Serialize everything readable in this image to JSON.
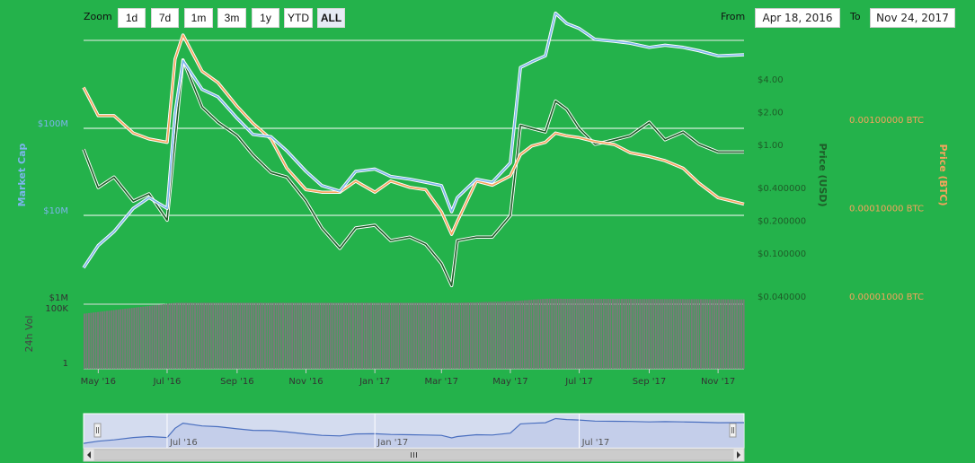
{
  "toolbar": {
    "zoom_label": "Zoom",
    "zoom_buttons": [
      "1d",
      "7d",
      "1m",
      "3m",
      "1y",
      "YTD",
      "ALL"
    ],
    "active_zoom": "ALL",
    "from_label": "From",
    "from_value": "Apr 18, 2016",
    "to_label": "To",
    "to_value": "Nov 24, 2017"
  },
  "colors": {
    "background": "#24b24b",
    "market_cap": "#7cb5ec",
    "price_usd": "#1e5c28",
    "price_btc": "#f7a35c",
    "volume": "#7a7a7a",
    "navigator": "#d4dcef"
  },
  "chart_data": {
    "type": "line",
    "x_range": [
      "2016-04-18",
      "2017-11-24"
    ],
    "x_ticks": [
      "May '16",
      "Jul '16",
      "Sep '16",
      "Nov '16",
      "Jan '17",
      "Mar '17",
      "May '17",
      "Jul '17",
      "Sep '17",
      "Nov '17"
    ],
    "y_axes": [
      {
        "id": "market_cap",
        "title": "Market Cap",
        "scale": "log",
        "ticks": [
          "$100M",
          "$10M"
        ],
        "tick_values": [
          100000000,
          10000000
        ]
      },
      {
        "id": "price_usd",
        "title": "Price (USD)",
        "scale": "log",
        "ticks": [
          "$4.00",
          "$2.00",
          "$1.00",
          "$0.400000",
          "$0.200000",
          "$0.100000",
          "$0.040000"
        ],
        "tick_values": [
          4,
          2,
          1,
          0.4,
          0.2,
          0.1,
          0.04
        ]
      },
      {
        "id": "price_btc",
        "title": "Price (BTC)",
        "scale": "log",
        "ticks": [
          "0.00100000 BTC",
          "0.00010000 BTC",
          "0.00001000 BTC"
        ],
        "tick_values": [
          0.001,
          0.0001,
          1e-05
        ]
      },
      {
        "id": "volume",
        "title": "24h Vol",
        "scale": "log",
        "ticks": [
          "$1M",
          "100K",
          "1"
        ],
        "tick_values": [
          1000000,
          100000,
          1
        ]
      }
    ],
    "series": [
      {
        "name": "Market Cap",
        "axis": "market_cap",
        "x": [
          "2016-04-18",
          "2016-05-01",
          "2016-05-15",
          "2016-06-01",
          "2016-06-15",
          "2016-07-01",
          "2016-07-08",
          "2016-07-15",
          "2016-08-01",
          "2016-08-15",
          "2016-09-01",
          "2016-09-15",
          "2016-10-01",
          "2016-10-15",
          "2016-11-01",
          "2016-11-15",
          "2016-12-01",
          "2016-12-15",
          "2017-01-01",
          "2017-01-15",
          "2017-02-01",
          "2017-02-15",
          "2017-03-01",
          "2017-03-10",
          "2017-03-15",
          "2017-04-01",
          "2017-04-15",
          "2017-05-01",
          "2017-05-10",
          "2017-05-20",
          "2017-06-01",
          "2017-06-10",
          "2017-06-20",
          "2017-07-01",
          "2017-07-15",
          "2017-08-01",
          "2017-08-15",
          "2017-09-01",
          "2017-09-15",
          "2017-10-01",
          "2017-10-15",
          "2017-11-01",
          "2017-11-24"
        ],
        "values": [
          2500000,
          4500000,
          6500000,
          12000000,
          16000000,
          12000000,
          150000000,
          600000000,
          280000000,
          230000000,
          130000000,
          85000000,
          80000000,
          55000000,
          32000000,
          22000000,
          19000000,
          32000000,
          34000000,
          28000000,
          26000000,
          24000000,
          22000000,
          11000000,
          16000000,
          26000000,
          24000000,
          40000000,
          500000000,
          580000000,
          680000000,
          2100000000,
          1600000000,
          1400000000,
          1050000000,
          1000000000,
          950000000,
          850000000,
          900000000,
          850000000,
          780000000,
          680000000,
          700000000
        ]
      },
      {
        "name": "Price (USD)",
        "axis": "price_usd",
        "x": [
          "2016-04-18",
          "2016-05-01",
          "2016-05-15",
          "2016-06-01",
          "2016-06-15",
          "2016-07-01",
          "2016-07-08",
          "2016-07-15",
          "2016-08-01",
          "2016-08-15",
          "2016-09-01",
          "2016-09-15",
          "2016-10-01",
          "2016-10-15",
          "2016-11-01",
          "2016-11-15",
          "2016-12-01",
          "2016-12-15",
          "2017-01-01",
          "2017-01-15",
          "2017-02-01",
          "2017-02-15",
          "2017-03-01",
          "2017-03-10",
          "2017-03-15",
          "2017-04-01",
          "2017-04-15",
          "2017-05-01",
          "2017-05-10",
          "2017-05-20",
          "2017-06-01",
          "2017-06-10",
          "2017-06-20",
          "2017-07-01",
          "2017-07-15",
          "2017-08-01",
          "2017-08-15",
          "2017-09-01",
          "2017-09-15",
          "2017-10-01",
          "2017-10-15",
          "2017-11-01",
          "2017-11-24"
        ],
        "values": [
          0.9,
          0.4,
          0.5,
          0.3,
          0.35,
          0.2,
          1.1,
          6.0,
          2.2,
          1.6,
          1.2,
          0.8,
          0.55,
          0.5,
          0.3,
          0.17,
          0.11,
          0.17,
          0.18,
          0.13,
          0.14,
          0.12,
          0.08,
          0.05,
          0.13,
          0.14,
          0.14,
          0.22,
          1.5,
          1.4,
          1.3,
          2.5,
          2.1,
          1.4,
          1.0,
          1.1,
          1.2,
          1.6,
          1.1,
          1.3,
          1.0,
          0.85,
          0.85
        ]
      },
      {
        "name": "Price (BTC)",
        "axis": "price_btc",
        "x": [
          "2016-04-18",
          "2016-05-01",
          "2016-05-15",
          "2016-06-01",
          "2016-06-15",
          "2016-07-01",
          "2016-07-08",
          "2016-07-15",
          "2016-08-01",
          "2016-08-15",
          "2016-09-01",
          "2016-09-15",
          "2016-10-01",
          "2016-10-15",
          "2016-11-01",
          "2016-11-15",
          "2016-12-01",
          "2016-12-15",
          "2017-01-01",
          "2017-01-15",
          "2017-02-01",
          "2017-02-15",
          "2017-03-01",
          "2017-03-10",
          "2017-03-15",
          "2017-04-01",
          "2017-04-15",
          "2017-05-01",
          "2017-05-10",
          "2017-05-20",
          "2017-06-01",
          "2017-06-10",
          "2017-06-20",
          "2017-07-01",
          "2017-07-15",
          "2017-08-01",
          "2017-08-15",
          "2017-09-01",
          "2017-09-15",
          "2017-10-01",
          "2017-10-15",
          "2017-11-01",
          "2017-11-24"
        ],
        "values": [
          0.0023,
          0.0011,
          0.0011,
          0.0007,
          0.0006,
          0.00055,
          0.0048,
          0.009,
          0.0035,
          0.0026,
          0.0014,
          0.0009,
          0.0006,
          0.00028,
          0.00016,
          0.00015,
          0.00015,
          0.0002,
          0.00015,
          0.0002,
          0.00017,
          0.00016,
          9e-05,
          5e-05,
          7e-05,
          0.0002,
          0.00018,
          0.00023,
          0.0004,
          0.0005,
          0.00055,
          0.0007,
          0.00065,
          0.00062,
          0.00056,
          0.00052,
          0.00042,
          0.00038,
          0.00034,
          0.00028,
          0.00019,
          0.00013,
          0.00011
        ]
      },
      {
        "name": "24h Vol",
        "axis": "volume",
        "type": "column",
        "x": [
          "2016-04-18",
          "2016-07-08",
          "2017-03-15",
          "2017-05-01",
          "2017-06-01",
          "2017-11-24"
        ],
        "values": [
          30000,
          300000,
          300000,
          400000,
          700000,
          600000
        ]
      }
    ],
    "navigator": {
      "ticks": [
        "Jul '16",
        "Jan '17",
        "Jul '17"
      ]
    },
    "grid": true,
    "legend": "none"
  }
}
